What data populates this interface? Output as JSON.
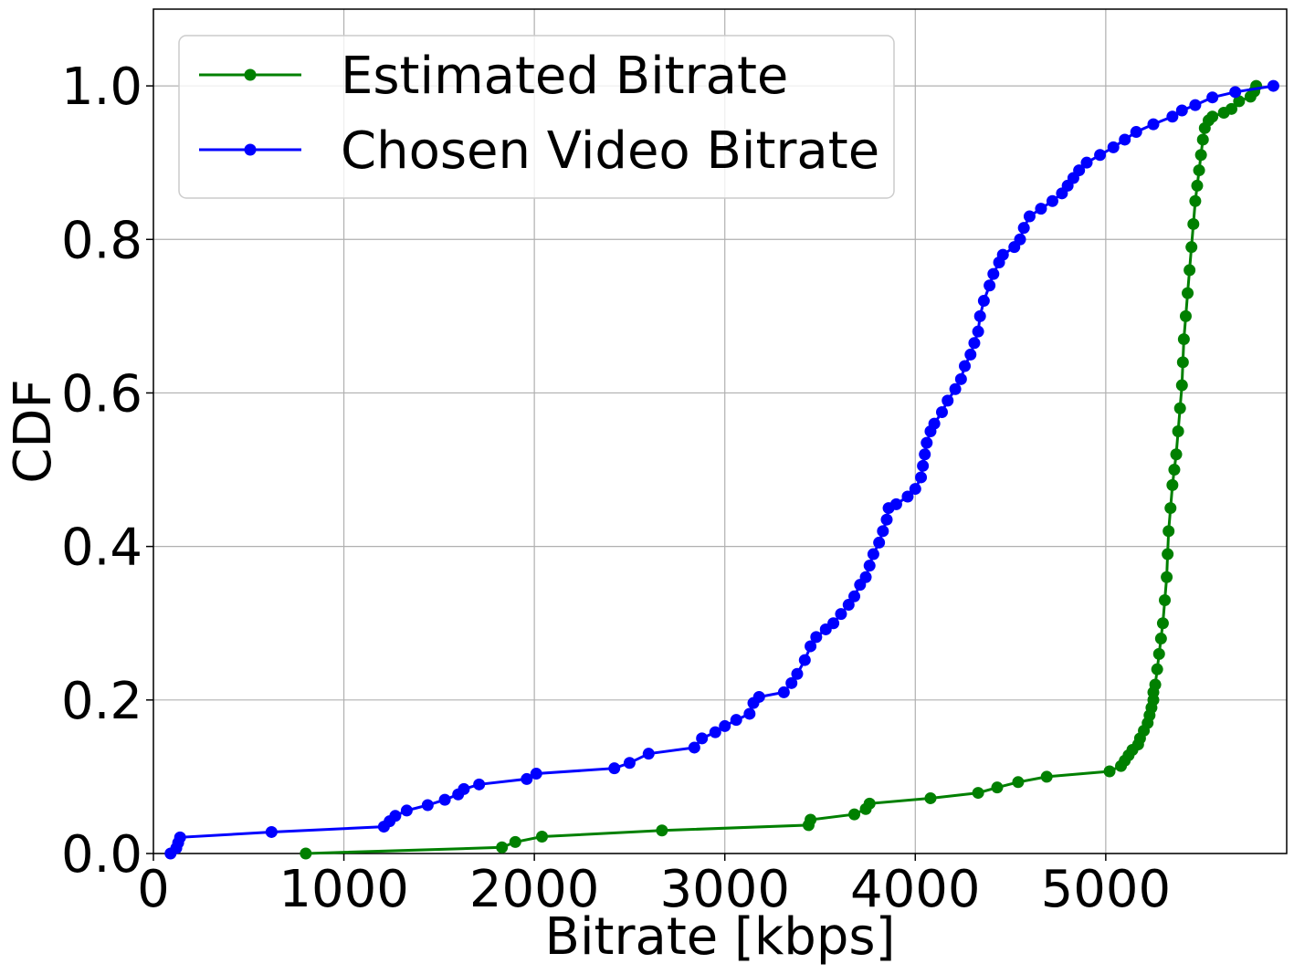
{
  "chart_data": {
    "type": "line",
    "title": "",
    "xlabel": "Bitrate [kbps]",
    "ylabel": "CDF",
    "xlim": [
      0,
      5950
    ],
    "ylim": [
      0,
      1.1
    ],
    "x_ticks": [
      0,
      1000,
      2000,
      3000,
      4000,
      5000
    ],
    "y_ticks": [
      0.0,
      0.2,
      0.4,
      0.6,
      0.8,
      1.0
    ],
    "x_tick_labels": [
      "0",
      "1000",
      "2000",
      "3000",
      "4000",
      "5000"
    ],
    "y_tick_labels": [
      "0.0",
      "0.2",
      "0.4",
      "0.6",
      "0.8",
      "1.0"
    ],
    "grid": true,
    "legend_position": "top-left",
    "series": [
      {
        "name": "Estimated Bitrate",
        "color": "#008000",
        "points": [
          [
            800,
            0.0
          ],
          [
            1830,
            0.008
          ],
          [
            1900,
            0.015
          ],
          [
            2040,
            0.022
          ],
          [
            2670,
            0.03
          ],
          [
            3440,
            0.037
          ],
          [
            3450,
            0.044
          ],
          [
            3680,
            0.051
          ],
          [
            3740,
            0.058
          ],
          [
            3760,
            0.065
          ],
          [
            4080,
            0.072
          ],
          [
            4330,
            0.079
          ],
          [
            4430,
            0.086
          ],
          [
            4540,
            0.093
          ],
          [
            4690,
            0.1
          ],
          [
            5020,
            0.107
          ],
          [
            5080,
            0.114
          ],
          [
            5100,
            0.121
          ],
          [
            5120,
            0.128
          ],
          [
            5140,
            0.135
          ],
          [
            5170,
            0.142
          ],
          [
            5180,
            0.15
          ],
          [
            5200,
            0.16
          ],
          [
            5220,
            0.17
          ],
          [
            5230,
            0.18
          ],
          [
            5240,
            0.19
          ],
          [
            5250,
            0.2
          ],
          [
            5250,
            0.21
          ],
          [
            5260,
            0.22
          ],
          [
            5270,
            0.24
          ],
          [
            5280,
            0.26
          ],
          [
            5290,
            0.28
          ],
          [
            5300,
            0.3
          ],
          [
            5310,
            0.33
          ],
          [
            5320,
            0.36
          ],
          [
            5325,
            0.39
          ],
          [
            5330,
            0.42
          ],
          [
            5340,
            0.45
          ],
          [
            5350,
            0.48
          ],
          [
            5360,
            0.5
          ],
          [
            5370,
            0.52
          ],
          [
            5380,
            0.55
          ],
          [
            5390,
            0.58
          ],
          [
            5400,
            0.61
          ],
          [
            5405,
            0.64
          ],
          [
            5410,
            0.67
          ],
          [
            5420,
            0.7
          ],
          [
            5430,
            0.73
          ],
          [
            5440,
            0.76
          ],
          [
            5450,
            0.79
          ],
          [
            5460,
            0.82
          ],
          [
            5470,
            0.85
          ],
          [
            5480,
            0.87
          ],
          [
            5490,
            0.89
          ],
          [
            5500,
            0.91
          ],
          [
            5510,
            0.93
          ],
          [
            5520,
            0.945
          ],
          [
            5540,
            0.955
          ],
          [
            5560,
            0.96
          ],
          [
            5620,
            0.965
          ],
          [
            5660,
            0.97
          ],
          [
            5700,
            0.98
          ],
          [
            5760,
            0.986
          ],
          [
            5780,
            0.993
          ],
          [
            5790,
            1.0
          ]
        ]
      },
      {
        "name": "Chosen Video Bitrate",
        "color": "#0000ff",
        "points": [
          [
            90,
            0.0
          ],
          [
            120,
            0.007
          ],
          [
            130,
            0.014
          ],
          [
            140,
            0.021
          ],
          [
            620,
            0.028
          ],
          [
            1210,
            0.035
          ],
          [
            1240,
            0.042
          ],
          [
            1270,
            0.049
          ],
          [
            1330,
            0.056
          ],
          [
            1440,
            0.063
          ],
          [
            1530,
            0.07
          ],
          [
            1600,
            0.077
          ],
          [
            1630,
            0.084
          ],
          [
            1710,
            0.09
          ],
          [
            1960,
            0.097
          ],
          [
            2010,
            0.104
          ],
          [
            2420,
            0.111
          ],
          [
            2500,
            0.118
          ],
          [
            2600,
            0.13
          ],
          [
            2840,
            0.138
          ],
          [
            2880,
            0.15
          ],
          [
            2950,
            0.158
          ],
          [
            3000,
            0.166
          ],
          [
            3060,
            0.174
          ],
          [
            3130,
            0.182
          ],
          [
            3150,
            0.196
          ],
          [
            3180,
            0.204
          ],
          [
            3310,
            0.21
          ],
          [
            3350,
            0.222
          ],
          [
            3380,
            0.234
          ],
          [
            3420,
            0.252
          ],
          [
            3450,
            0.27
          ],
          [
            3480,
            0.282
          ],
          [
            3530,
            0.292
          ],
          [
            3570,
            0.3
          ],
          [
            3610,
            0.312
          ],
          [
            3650,
            0.324
          ],
          [
            3680,
            0.335
          ],
          [
            3710,
            0.35
          ],
          [
            3740,
            0.36
          ],
          [
            3760,
            0.375
          ],
          [
            3780,
            0.39
          ],
          [
            3810,
            0.405
          ],
          [
            3830,
            0.42
          ],
          [
            3850,
            0.435
          ],
          [
            3860,
            0.45
          ],
          [
            3900,
            0.455
          ],
          [
            3960,
            0.465
          ],
          [
            4000,
            0.475
          ],
          [
            4030,
            0.49
          ],
          [
            4040,
            0.505
          ],
          [
            4050,
            0.52
          ],
          [
            4060,
            0.535
          ],
          [
            4080,
            0.55
          ],
          [
            4100,
            0.56
          ],
          [
            4140,
            0.575
          ],
          [
            4170,
            0.59
          ],
          [
            4210,
            0.605
          ],
          [
            4240,
            0.618
          ],
          [
            4260,
            0.635
          ],
          [
            4290,
            0.65
          ],
          [
            4310,
            0.665
          ],
          [
            4330,
            0.68
          ],
          [
            4340,
            0.7
          ],
          [
            4360,
            0.72
          ],
          [
            4390,
            0.74
          ],
          [
            4410,
            0.755
          ],
          [
            4440,
            0.77
          ],
          [
            4460,
            0.78
          ],
          [
            4520,
            0.79
          ],
          [
            4550,
            0.8
          ],
          [
            4570,
            0.815
          ],
          [
            4600,
            0.83
          ],
          [
            4660,
            0.84
          ],
          [
            4720,
            0.85
          ],
          [
            4770,
            0.86
          ],
          [
            4800,
            0.87
          ],
          [
            4830,
            0.88
          ],
          [
            4860,
            0.89
          ],
          [
            4900,
            0.9
          ],
          [
            4970,
            0.91
          ],
          [
            5040,
            0.92
          ],
          [
            5100,
            0.93
          ],
          [
            5160,
            0.94
          ],
          [
            5250,
            0.95
          ],
          [
            5350,
            0.96
          ],
          [
            5400,
            0.968
          ],
          [
            5470,
            0.975
          ],
          [
            5560,
            0.985
          ],
          [
            5680,
            0.992
          ],
          [
            5880,
            1.0
          ]
        ]
      }
    ]
  }
}
